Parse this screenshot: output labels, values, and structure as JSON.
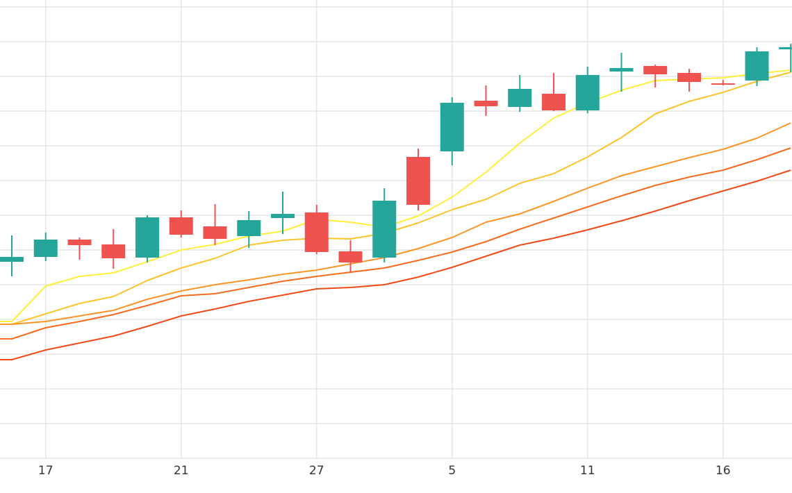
{
  "chart_data": {
    "type": "candlestick",
    "title": "",
    "xlabel": "",
    "ylabel": "",
    "grid": true,
    "x_tick_labels": [
      "17",
      "21",
      "27",
      "5",
      "11",
      "16"
    ],
    "x_tick_candle_index": [
      1,
      5,
      9,
      13,
      17,
      21
    ],
    "ylim": [
      0,
      650
    ],
    "y_gridlines": [
      0,
      50,
      100,
      150,
      200,
      250,
      300,
      350,
      400,
      450,
      500,
      550,
      600,
      650
    ],
    "candles": [
      {
        "o": 283,
        "h": 321,
        "l": 262,
        "c": 290
      },
      {
        "o": 290,
        "h": 325,
        "l": 284,
        "c": 315
      },
      {
        "o": 315,
        "h": 318,
        "l": 286,
        "c": 307
      },
      {
        "o": 308,
        "h": 330,
        "l": 273,
        "c": 288
      },
      {
        "o": 289,
        "h": 350,
        "l": 282,
        "c": 347
      },
      {
        "o": 347,
        "h": 357,
        "l": 318,
        "c": 322
      },
      {
        "o": 334,
        "h": 366,
        "l": 307,
        "c": 316
      },
      {
        "o": 320,
        "h": 356,
        "l": 303,
        "c": 343
      },
      {
        "o": 346,
        "h": 384,
        "l": 323,
        "c": 352
      },
      {
        "o": 354,
        "h": 365,
        "l": 294,
        "c": 297
      },
      {
        "o": 298,
        "h": 314,
        "l": 268,
        "c": 282
      },
      {
        "o": 289,
        "h": 389,
        "l": 282,
        "c": 371
      },
      {
        "o": 434,
        "h": 446,
        "l": 357,
        "c": 365
      },
      {
        "o": 442,
        "h": 520,
        "l": 422,
        "c": 512
      },
      {
        "o": 515,
        "h": 537,
        "l": 493,
        "c": 507
      },
      {
        "o": 506,
        "h": 552,
        "l": 499,
        "c": 532
      },
      {
        "o": 525,
        "h": 555,
        "l": 500,
        "c": 501
      },
      {
        "o": 501,
        "h": 564,
        "l": 497,
        "c": 552
      },
      {
        "o": 557,
        "h": 584,
        "l": 528,
        "c": 562
      },
      {
        "o": 565,
        "h": 567,
        "l": 534,
        "c": 553
      },
      {
        "o": 555,
        "h": 561,
        "l": 528,
        "c": 542
      },
      {
        "o": 540,
        "h": 545,
        "l": 537,
        "c": 539
      },
      {
        "o": 544,
        "h": 592,
        "l": 536,
        "c": 586
      },
      {
        "o": 589,
        "h": 597,
        "l": 556,
        "c": 592
      }
    ],
    "moving_averages": [
      {
        "color": "#ffee3a",
        "values": [
          197,
          248,
          262,
          267,
          283,
          300,
          308,
          320,
          327,
          344,
          340,
          333,
          349,
          376,
          412,
          454,
          490,
          512,
          530,
          544,
          546,
          548,
          554,
          559
        ]
      },
      {
        "color": "#fbc42c",
        "values": [
          193,
          208,
          223,
          233,
          256,
          274,
          288,
          307,
          314,
          317,
          316,
          324,
          339,
          358,
          373,
          396,
          410,
          434,
          462,
          496,
          514,
          527,
          543,
          556
        ]
      },
      {
        "color": "#f99526",
        "values": [
          193,
          197,
          205,
          213,
          229,
          241,
          250,
          257,
          265,
          271,
          280,
          289,
          302,
          318,
          340,
          352,
          370,
          389,
          407,
          420,
          433,
          445,
          461,
          483
        ]
      },
      {
        "color": "#f56b1f",
        "values": [
          172,
          188,
          197,
          207,
          220,
          234,
          237,
          246,
          255,
          262,
          268,
          274,
          285,
          297,
          312,
          330,
          346,
          362,
          378,
          393,
          405,
          415,
          430,
          447
        ]
      },
      {
        "color": "#ef4a18",
        "values": [
          142,
          156,
          166,
          176,
          190,
          205,
          215,
          226,
          235,
          244,
          246,
          250,
          261,
          275,
          291,
          307,
          317,
          329,
          342,
          356,
          371,
          385,
          399,
          415
        ]
      }
    ],
    "colors": {
      "up": "#26a69a",
      "down": "#ef5350",
      "grid": "#e6e6e6",
      "axis_text": "#333333"
    }
  }
}
